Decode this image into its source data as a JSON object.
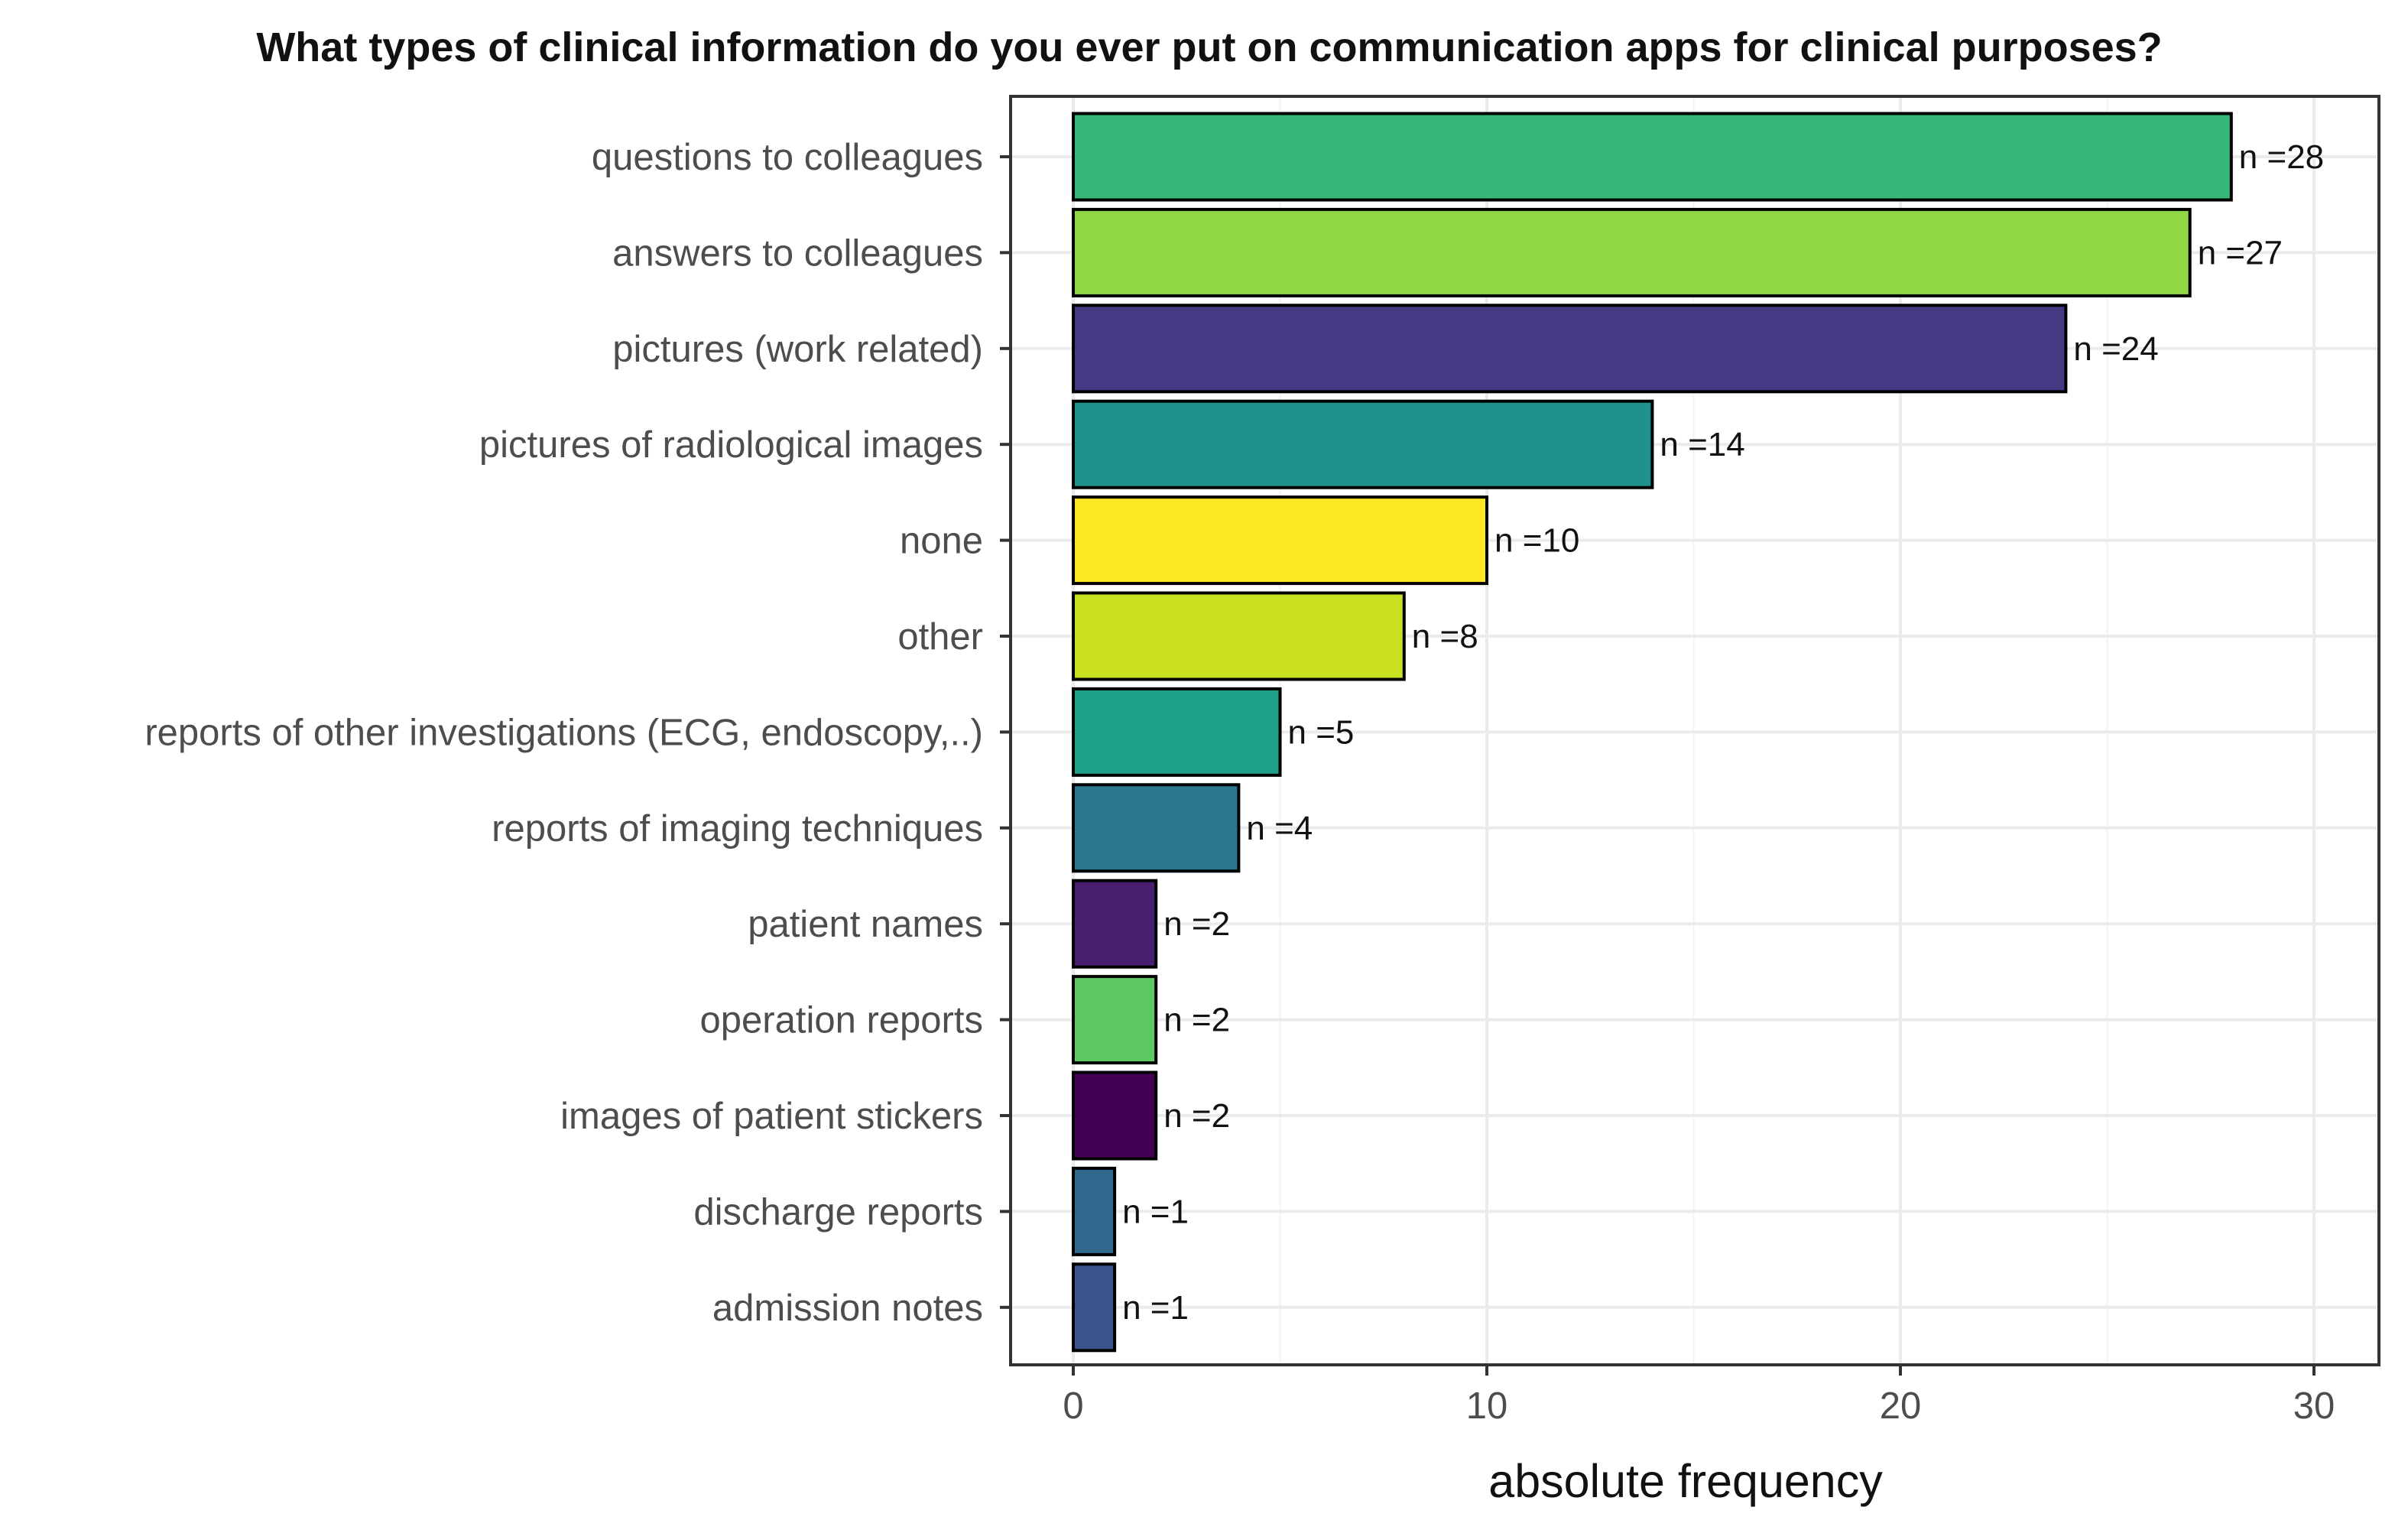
{
  "chart_data": {
    "type": "bar",
    "orientation": "horizontal",
    "title": "What types of clinical information do you ever put on communication apps for clinical purposes?",
    "xlabel": "absolute frequency",
    "ylabel": "",
    "xlim": [
      0,
      30
    ],
    "xticks": [
      0,
      10,
      20,
      30
    ],
    "grid": true,
    "legend": "none",
    "categories": [
      "questions to colleagues",
      "answers to colleagues",
      "pictures (work related)",
      "pictures of radiological images",
      "none",
      "other",
      "reports of other investigations (ECG, endoscopy,..)",
      "reports of imaging techniques",
      "patient names",
      "operation reports",
      "images of patient stickers",
      "discharge reports",
      "admission notes"
    ],
    "values": [
      28,
      27,
      24,
      14,
      10,
      8,
      5,
      4,
      2,
      2,
      2,
      1,
      1
    ],
    "data_labels": [
      "n =28",
      "n =27",
      "n =24",
      "n =14",
      "n =10",
      "n =8",
      "n =5",
      "n =4",
      "n =2",
      "n =2",
      "n =2",
      "n =1",
      "n =1"
    ],
    "colors": [
      "#35b779",
      "#8fd744",
      "#443983",
      "#21918c",
      "#fde725",
      "#c8e020",
      "#1fa187",
      "#2a788e",
      "#481f70",
      "#5ec962",
      "#440154",
      "#31688e",
      "#3b528b"
    ]
  }
}
